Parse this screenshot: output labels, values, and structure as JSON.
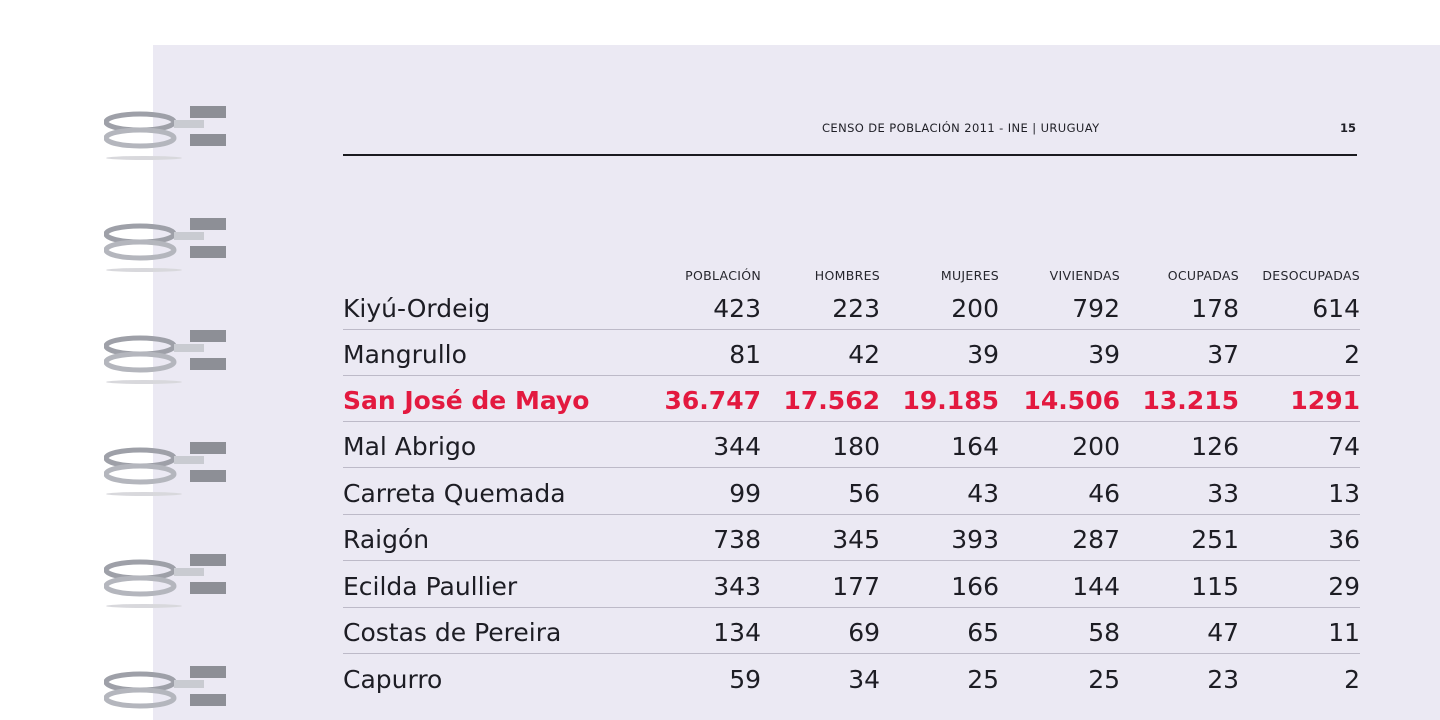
{
  "header": {
    "title": "CENSO DE POBLACIÓN 2011 - INE | URUGUAY",
    "page_number": "15"
  },
  "columns": [
    "POBLACIÓN",
    "HOMBRES",
    "MUJERES",
    "VIVIENDAS",
    "OCUPADAS",
    "DESOCUPADAS"
  ],
  "rows": [
    {
      "name": "Kiyú-Ordeig",
      "values": [
        "423",
        "223",
        "200",
        "792",
        "178",
        "614"
      ],
      "highlight": false
    },
    {
      "name": "Mangrullo",
      "values": [
        "81",
        "42",
        "39",
        "39",
        "37",
        "2"
      ],
      "highlight": false
    },
    {
      "name": "San José de Mayo",
      "values": [
        "36.747",
        "17.562",
        "19.185",
        "14.506",
        "13.215",
        "1291"
      ],
      "highlight": true
    },
    {
      "name": "Mal Abrigo",
      "values": [
        "344",
        "180",
        "164",
        "200",
        "126",
        "74"
      ],
      "highlight": false
    },
    {
      "name": "Carreta Quemada",
      "values": [
        "99",
        "56",
        "43",
        "46",
        "33",
        "13"
      ],
      "highlight": false
    },
    {
      "name": "Raigón",
      "values": [
        "738",
        "345",
        "393",
        "287",
        "251",
        "36"
      ],
      "highlight": false
    },
    {
      "name": "Ecilda Paullier",
      "values": [
        "343",
        "177",
        "166",
        "144",
        "115",
        "29"
      ],
      "highlight": false
    },
    {
      "name": "Costas de Pereira",
      "values": [
        "134",
        "69",
        "65",
        "58",
        "47",
        "11"
      ],
      "highlight": false
    },
    {
      "name": "Capurro",
      "values": [
        "59",
        "34",
        "25",
        "25",
        "23",
        "2"
      ],
      "highlight": false
    }
  ],
  "colors": {
    "page_background": "#ebe9f3",
    "highlight": "#e3193f",
    "text": "#1d1d24"
  }
}
